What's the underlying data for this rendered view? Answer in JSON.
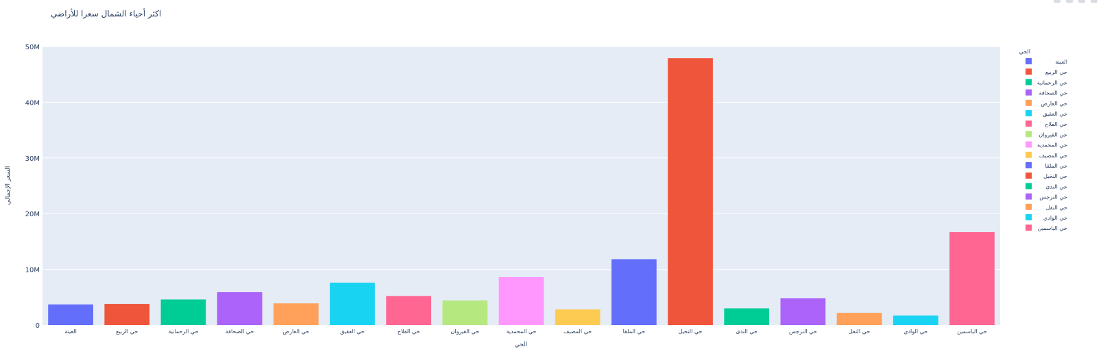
{
  "colors": {
    "plot_bg": "#e5ecf6",
    "grid": "#ffffff",
    "text": "#2a3f5f",
    "palette": [
      "#636efa",
      "#ef553b",
      "#00cc96",
      "#ab63fa",
      "#ffa15a",
      "#19d3f3",
      "#ff6692",
      "#b6e880",
      "#ff97ff",
      "#fecb52"
    ]
  },
  "chart_data": {
    "type": "bar",
    "title": "اكثر أحياء الشمال سعرا للأراضي",
    "xlabel": "الحي",
    "ylabel": "السعر الإجمالي",
    "legend_title": "الحي",
    "legend_placement": "right",
    "grid": true,
    "ylim": [
      0,
      50000000
    ],
    "y_ticks": [
      0,
      10000000,
      20000000,
      30000000,
      40000000,
      50000000
    ],
    "y_tick_labels": [
      "0",
      "10M",
      "20M",
      "30M",
      "40M",
      "50M"
    ],
    "categories": [
      "العينة",
      "حي الربيع",
      "حي الرحمانية",
      "حي الصحافة",
      "حي العارض",
      "حي العقيق",
      "حي الفلاح",
      "حي القيروان",
      "حي المحمدية",
      "حي المصيف",
      "حي الملقا",
      "حي النخيل",
      "حي الندى",
      "حي النرجس",
      "حي النفل",
      "حي الوادي",
      "حي الياسمين"
    ],
    "values": [
      3700000,
      3800000,
      4600000,
      5900000,
      3900000,
      7600000,
      5200000,
      4400000,
      8600000,
      2800000,
      11800000,
      47900000,
      3000000,
      4800000,
      2200000,
      1700000,
      16700000
    ]
  }
}
